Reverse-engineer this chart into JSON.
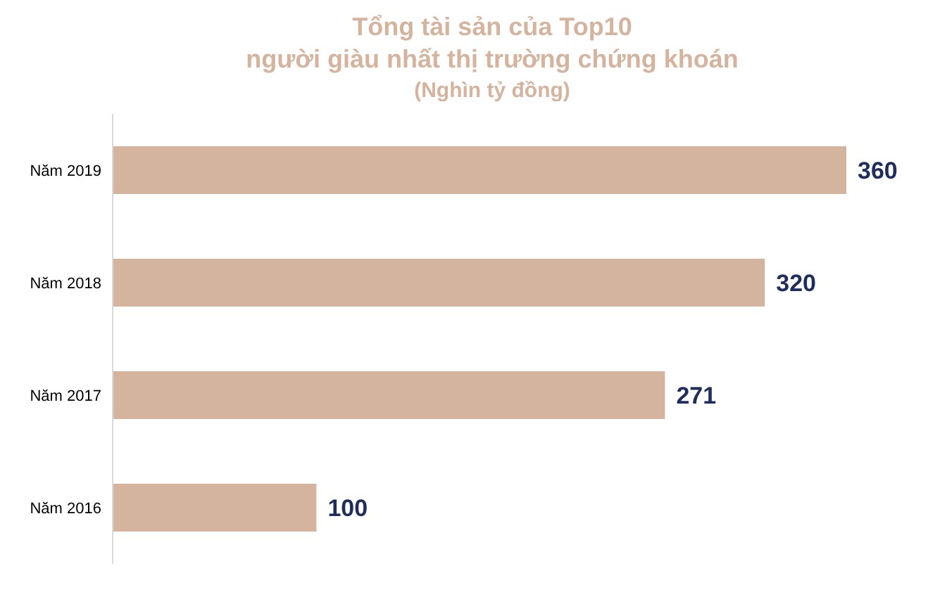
{
  "chart_data": {
    "type": "bar",
    "orientation": "horizontal",
    "title": "Tổng tài sản của Top10\nngười giàu nhất thị trường chứng khoán",
    "subtitle": "(Nghìn tỷ đồng)",
    "categories": [
      "Năm 2019",
      "Năm 2018",
      "Năm 2017",
      "Năm 2016"
    ],
    "values": [
      360,
      320,
      271,
      100
    ],
    "color": "#d4b49e",
    "data_labels": true
  }
}
